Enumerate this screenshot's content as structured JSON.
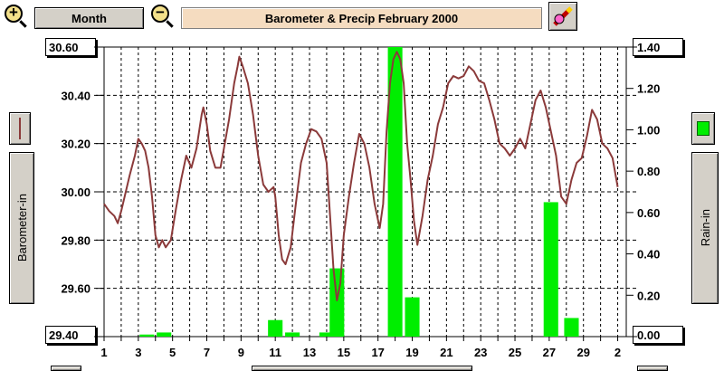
{
  "toolbar": {
    "period_label": "Month",
    "zoom_in_symbol": "+",
    "zoom_out_symbol": "−",
    "title": "Barometer & Precip   February 2000",
    "icons": {
      "zoom_in": "zoom-in-icon",
      "zoom_out": "zoom-out-icon",
      "options": "pencil-icon"
    }
  },
  "left_panel": {
    "label": "Barometer-in",
    "legend_color": "#8b3a3a"
  },
  "right_panel": {
    "label": "Rain-in",
    "legend_color": "#00ee00"
  },
  "colors": {
    "barometer": "#8b3a3a",
    "rain": "#00ee00"
  },
  "chart_data": {
    "type": "line",
    "x_tick_labels": [
      "1",
      "3",
      "5",
      "7",
      "9",
      "11",
      "13",
      "15",
      "17",
      "19",
      "21",
      "23",
      "25",
      "27",
      "29",
      "2"
    ],
    "x_days_range": [
      1,
      30
    ],
    "y_left": {
      "label": "Barometer-in",
      "range": [
        29.4,
        30.6
      ],
      "ticks": [
        "29.40",
        "29.60",
        "29.80",
        "30.00",
        "30.20",
        "30.40",
        "30.60"
      ],
      "max_label": "30.60",
      "min_label": "29.40"
    },
    "y_right": {
      "label": "Rain-in",
      "range": [
        0.0,
        1.4
      ],
      "ticks": [
        "0.00",
        "0.20",
        "0.40",
        "0.60",
        "0.80",
        "1.00",
        "1.20",
        "1.40"
      ],
      "max_label": "1.40",
      "min_label": "0.00"
    },
    "grid": true,
    "series": [
      {
        "type": "line",
        "axis": "left",
        "points": [
          [
            1.0,
            29.95
          ],
          [
            1.3,
            29.92
          ],
          [
            1.6,
            29.9
          ],
          [
            1.8,
            29.87
          ],
          [
            2.0,
            29.92
          ],
          [
            2.2,
            29.98
          ],
          [
            2.5,
            30.07
          ],
          [
            2.8,
            30.15
          ],
          [
            3.0,
            30.22
          ],
          [
            3.2,
            30.2
          ],
          [
            3.4,
            30.17
          ],
          [
            3.6,
            30.1
          ],
          [
            3.8,
            29.98
          ],
          [
            4.0,
            29.82
          ],
          [
            4.2,
            29.77
          ],
          [
            4.4,
            29.8
          ],
          [
            4.6,
            29.77
          ],
          [
            4.9,
            29.8
          ],
          [
            5.2,
            29.93
          ],
          [
            5.5,
            30.05
          ],
          [
            5.8,
            30.15
          ],
          [
            6.1,
            30.1
          ],
          [
            6.4,
            30.18
          ],
          [
            6.7,
            30.32
          ],
          [
            6.8,
            30.35
          ],
          [
            7.0,
            30.28
          ],
          [
            7.2,
            30.17
          ],
          [
            7.5,
            30.1
          ],
          [
            7.8,
            30.1
          ],
          [
            8.0,
            30.18
          ],
          [
            8.3,
            30.3
          ],
          [
            8.6,
            30.45
          ],
          [
            8.8,
            30.52
          ],
          [
            8.9,
            30.56
          ],
          [
            9.1,
            30.52
          ],
          [
            9.4,
            30.45
          ],
          [
            9.7,
            30.32
          ],
          [
            10.0,
            30.15
          ],
          [
            10.3,
            30.03
          ],
          [
            10.6,
            30.0
          ],
          [
            10.9,
            30.02
          ],
          [
            11.0,
            29.98
          ],
          [
            11.2,
            29.82
          ],
          [
            11.4,
            29.72
          ],
          [
            11.6,
            29.7
          ],
          [
            11.9,
            29.77
          ],
          [
            12.2,
            29.95
          ],
          [
            12.5,
            30.12
          ],
          [
            12.8,
            30.2
          ],
          [
            13.1,
            30.26
          ],
          [
            13.4,
            30.25
          ],
          [
            13.7,
            30.22
          ],
          [
            14.0,
            30.12
          ],
          [
            14.2,
            29.9
          ],
          [
            14.4,
            29.68
          ],
          [
            14.6,
            29.55
          ],
          [
            14.8,
            29.62
          ],
          [
            15.0,
            29.82
          ],
          [
            15.3,
            29.98
          ],
          [
            15.6,
            30.12
          ],
          [
            15.9,
            30.24
          ],
          [
            16.2,
            30.2
          ],
          [
            16.5,
            30.1
          ],
          [
            16.8,
            29.95
          ],
          [
            17.1,
            29.85
          ],
          [
            17.3,
            29.95
          ],
          [
            17.5,
            30.25
          ],
          [
            17.7,
            30.45
          ],
          [
            17.9,
            30.55
          ],
          [
            18.1,
            30.58
          ],
          [
            18.3,
            30.55
          ],
          [
            18.5,
            30.45
          ],
          [
            18.7,
            30.2
          ],
          [
            18.9,
            30.05
          ],
          [
            19.1,
            29.88
          ],
          [
            19.3,
            29.78
          ],
          [
            19.6,
            29.9
          ],
          [
            19.9,
            30.05
          ],
          [
            20.2,
            30.15
          ],
          [
            20.5,
            30.28
          ],
          [
            20.8,
            30.35
          ],
          [
            21.1,
            30.45
          ],
          [
            21.4,
            30.48
          ],
          [
            21.7,
            30.47
          ],
          [
            22.0,
            30.48
          ],
          [
            22.3,
            30.52
          ],
          [
            22.6,
            30.5
          ],
          [
            22.9,
            30.46
          ],
          [
            23.2,
            30.45
          ],
          [
            23.5,
            30.38
          ],
          [
            23.8,
            30.3
          ],
          [
            24.1,
            30.2
          ],
          [
            24.4,
            30.18
          ],
          [
            24.7,
            30.15
          ],
          [
            25.0,
            30.18
          ],
          [
            25.3,
            30.22
          ],
          [
            25.6,
            30.18
          ],
          [
            25.9,
            30.28
          ],
          [
            26.2,
            30.38
          ],
          [
            26.5,
            30.42
          ],
          [
            26.8,
            30.35
          ],
          [
            27.1,
            30.25
          ],
          [
            27.4,
            30.15
          ],
          [
            27.7,
            29.98
          ],
          [
            28.0,
            29.95
          ],
          [
            28.3,
            30.05
          ],
          [
            28.6,
            30.12
          ],
          [
            28.9,
            30.14
          ],
          [
            29.2,
            30.23
          ],
          [
            29.5,
            30.34
          ],
          [
            29.8,
            30.3
          ],
          [
            30.1,
            30.2
          ],
          [
            30.4,
            30.18
          ],
          [
            30.7,
            30.14
          ],
          [
            31.0,
            30.02
          ]
        ]
      },
      {
        "type": "bar",
        "axis": "right",
        "bars": [
          {
            "day": 3.5,
            "value": 0.01
          },
          {
            "day": 4.5,
            "value": 0.02
          },
          {
            "day": 11.0,
            "value": 0.08
          },
          {
            "day": 12.0,
            "value": 0.02
          },
          {
            "day": 14.0,
            "value": 0.02
          },
          {
            "day": 14.6,
            "value": 0.33
          },
          {
            "day": 18.0,
            "value": 1.4
          },
          {
            "day": 19.0,
            "value": 0.19
          },
          {
            "day": 27.1,
            "value": 0.65
          },
          {
            "day": 28.3,
            "value": 0.09
          }
        ]
      }
    ]
  },
  "nav": {
    "scroll_left": "scroll-left-button",
    "scroll_right": "scroll-right-button"
  }
}
